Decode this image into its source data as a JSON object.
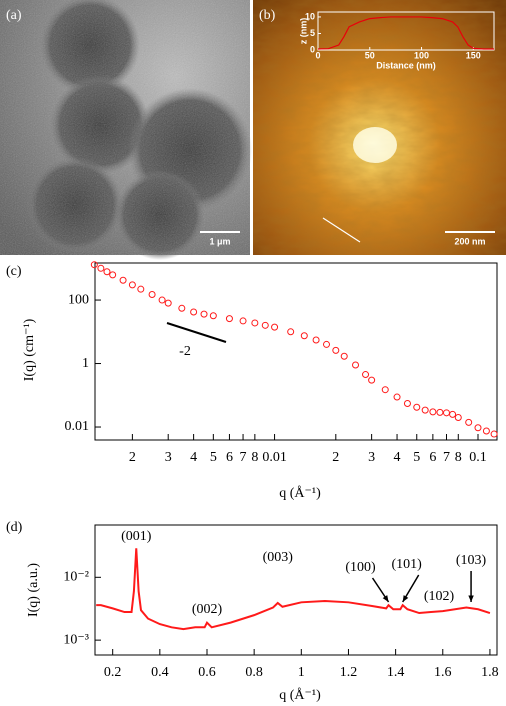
{
  "panels": [
    {
      "label": "(a)",
      "scale_bar": "1 μm"
    },
    {
      "label": "(b)",
      "scale_bar": "200 nm"
    }
  ],
  "chart_data": [
    {
      "type": "line",
      "xlabel": "Distance (nm)",
      "ylabel": "z (nm)",
      "color": "#e8000b",
      "x": [
        0,
        10,
        20,
        25,
        30,
        40,
        50,
        60,
        70,
        80,
        90,
        100,
        110,
        120,
        130,
        135,
        140,
        145,
        150,
        160,
        170
      ],
      "values": [
        0.3,
        0.4,
        1.5,
        4,
        7,
        8.5,
        9.5,
        9.8,
        10,
        10,
        10,
        10,
        9.8,
        9.5,
        8.5,
        7,
        4,
        1.5,
        0.5,
        0.3,
        0.3
      ],
      "xlim": [
        0,
        170
      ],
      "ylim": [
        0,
        11.5
      ],
      "xticks": [
        0,
        50,
        100,
        150
      ],
      "yticks": [
        0,
        5,
        10
      ]
    },
    {
      "type": "scatter",
      "panel_label": "(c)",
      "xlabel": "q (Å⁻¹)",
      "ylabel": "I(q) (cm⁻¹)",
      "color": "#ff1a1a",
      "xlog": true,
      "ylog": true,
      "x": [
        0.0013,
        0.0014,
        0.0015,
        0.0016,
        0.0018,
        0.002,
        0.0022,
        0.0025,
        0.0028,
        0.003,
        0.0035,
        0.004,
        0.0045,
        0.005,
        0.006,
        0.007,
        0.008,
        0.009,
        0.01,
        0.012,
        0.014,
        0.016,
        0.018,
        0.02,
        0.022,
        0.025,
        0.028,
        0.03,
        0.035,
        0.04,
        0.045,
        0.05,
        0.055,
        0.06,
        0.065,
        0.07,
        0.075,
        0.08,
        0.09,
        0.1,
        0.11,
        0.12
      ],
      "values": [
        1300,
        1000,
        780,
        620,
        420,
        300,
        220,
        150,
        100,
        80,
        55,
        42,
        36,
        32,
        26,
        22,
        19,
        16,
        14,
        10,
        7.5,
        5.5,
        4,
        2.6,
        1.7,
        0.9,
        0.45,
        0.3,
        0.15,
        0.088,
        0.055,
        0.042,
        0.034,
        0.03,
        0.029,
        0.028,
        0.025,
        0.02,
        0.014,
        0.0095,
        0.0075,
        0.006
      ],
      "xlim": [
        0.00131,
        0.124
      ],
      "ylim": [
        0.0039,
        1470
      ],
      "xticks": [
        {
          "value": 0.002,
          "label": "2"
        },
        {
          "value": 0.003,
          "label": "3"
        },
        {
          "value": 0.004,
          "label": "4"
        },
        {
          "value": 0.005,
          "label": "5"
        },
        {
          "value": 0.006,
          "label": "6"
        },
        {
          "value": 0.007,
          "label": "7"
        },
        {
          "value": 0.008,
          "label": "8"
        },
        0.01,
        {
          "value": 0.02,
          "label": "2"
        },
        {
          "value": 0.03,
          "label": "3"
        },
        {
          "value": 0.04,
          "label": "4"
        },
        {
          "value": 0.05,
          "label": "5"
        },
        {
          "value": 0.06,
          "label": "6"
        },
        {
          "value": 0.07,
          "label": "7"
        },
        {
          "value": 0.08,
          "label": "8"
        },
        0.1
      ],
      "yticks": [
        0.01,
        1,
        100
      ],
      "annotations": [
        {
          "text": "-2"
        }
      ]
    },
    {
      "type": "line",
      "panel_label": "(d)",
      "xlabel": "q (Å⁻¹)",
      "ylabel": "I(q) (a.u.)",
      "color": "#ff1a1a",
      "ylog": true,
      "x": [
        0.13,
        0.15,
        0.2,
        0.25,
        0.28,
        0.29,
        0.3,
        0.31,
        0.32,
        0.35,
        0.4,
        0.45,
        0.5,
        0.55,
        0.59,
        0.6,
        0.62,
        0.7,
        0.8,
        0.88,
        0.9,
        0.92,
        1.0,
        1.1,
        1.2,
        1.3,
        1.36,
        1.37,
        1.39,
        1.42,
        1.43,
        1.45,
        1.5,
        1.55,
        1.6,
        1.7,
        1.75,
        1.8
      ],
      "values": [
        0.0036,
        0.0036,
        0.0032,
        0.0028,
        0.0028,
        0.006,
        0.029,
        0.006,
        0.003,
        0.0022,
        0.0018,
        0.0016,
        0.0015,
        0.0016,
        0.0016,
        0.0019,
        0.0016,
        0.0019,
        0.0025,
        0.0033,
        0.0039,
        0.0034,
        0.004,
        0.0042,
        0.004,
        0.0035,
        0.0032,
        0.0036,
        0.0031,
        0.0031,
        0.0036,
        0.0031,
        0.0027,
        0.0028,
        0.0029,
        0.0033,
        0.0031,
        0.0027
      ],
      "xlim": [
        0.125,
        1.83
      ],
      "ylim": [
        0.00058,
        0.068
      ],
      "xticks": [
        0.2,
        0.4,
        0.6,
        0.8,
        1.0,
        1.2,
        1.4,
        1.6,
        1.8
      ],
      "yticks": [
        {
          "value": 0.001,
          "label": "10⁻³"
        },
        {
          "value": 0.01,
          "label": "10⁻²"
        }
      ],
      "annotations": [
        {
          "text": "(001)",
          "x": 0.3
        },
        {
          "text": "(002)",
          "x": 0.6
        },
        {
          "text": "(003)",
          "x": 0.9
        },
        {
          "text": "(100)",
          "x": 1.37,
          "arrow": true
        },
        {
          "text": "(101)",
          "x": 1.43,
          "arrow": true
        },
        {
          "text": "(102)",
          "x": 1.55
        },
        {
          "text": "(103)",
          "x": 1.72,
          "arrow": true
        }
      ]
    }
  ]
}
